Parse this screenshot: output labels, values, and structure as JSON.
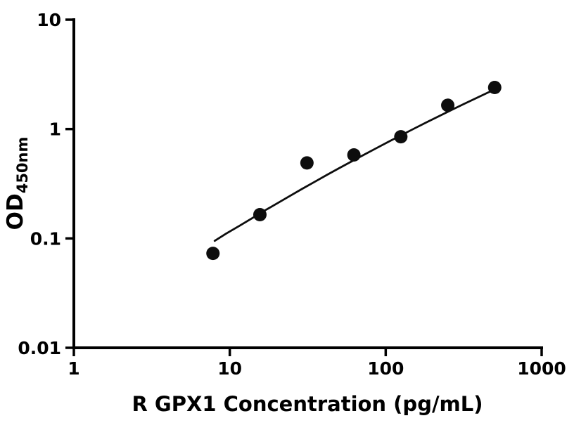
{
  "chart_data": {
    "type": "scatter",
    "title": "",
    "xlabel": "R GPX1 Concentration (pg/mL)",
    "ylabel": "OD",
    "ylabel_subscript": "450nm",
    "x_scale": "log",
    "y_scale": "log",
    "xlim": [
      1,
      1000
    ],
    "ylim": [
      0.01,
      10
    ],
    "x_ticks": [
      1,
      10,
      100,
      1000
    ],
    "x_tick_labels": [
      "1",
      "10",
      "100",
      "1000"
    ],
    "y_ticks": [
      0.01,
      0.1,
      1,
      10
    ],
    "y_tick_labels": [
      "0.01",
      "0.1",
      "1",
      "10"
    ],
    "grid": false,
    "legend": "none",
    "colors": {
      "marker": "#0d0d0d",
      "line": "#0d0d0d",
      "axis": "#000000",
      "background": "#ffffff"
    },
    "marker_radius": 9.5,
    "series": [
      {
        "name": "fitted-curve",
        "type": "line",
        "color": "#0d0d0d",
        "points": [
          {
            "x": 8,
            "y": 0.095
          },
          {
            "x": 9.5,
            "y": 0.111
          },
          {
            "x": 11.5,
            "y": 0.13
          },
          {
            "x": 14,
            "y": 0.154
          },
          {
            "x": 17,
            "y": 0.182
          },
          {
            "x": 20,
            "y": 0.208
          },
          {
            "x": 24,
            "y": 0.242
          },
          {
            "x": 29,
            "y": 0.283
          },
          {
            "x": 35,
            "y": 0.329
          },
          {
            "x": 42,
            "y": 0.381
          },
          {
            "x": 50,
            "y": 0.437
          },
          {
            "x": 60,
            "y": 0.503
          },
          {
            "x": 72,
            "y": 0.579
          },
          {
            "x": 87,
            "y": 0.668
          },
          {
            "x": 105,
            "y": 0.769
          },
          {
            "x": 126,
            "y": 0.88
          },
          {
            "x": 152,
            "y": 1.009
          },
          {
            "x": 183,
            "y": 1.153
          },
          {
            "x": 220,
            "y": 1.314
          },
          {
            "x": 265,
            "y": 1.497
          },
          {
            "x": 318,
            "y": 1.697
          },
          {
            "x": 383,
            "y": 1.926
          },
          {
            "x": 460,
            "y": 2.178
          },
          {
            "x": 510,
            "y": 2.331
          }
        ]
      },
      {
        "name": "standard-points",
        "type": "scatter",
        "marker": "circle",
        "color": "#0d0d0d",
        "points": [
          {
            "x": 7.8,
            "y": 0.073
          },
          {
            "x": 15.6,
            "y": 0.165
          },
          {
            "x": 31.25,
            "y": 0.49
          },
          {
            "x": 62.5,
            "y": 0.58
          },
          {
            "x": 125,
            "y": 0.85
          },
          {
            "x": 250,
            "y": 1.65
          },
          {
            "x": 500,
            "y": 2.4
          }
        ]
      }
    ]
  }
}
